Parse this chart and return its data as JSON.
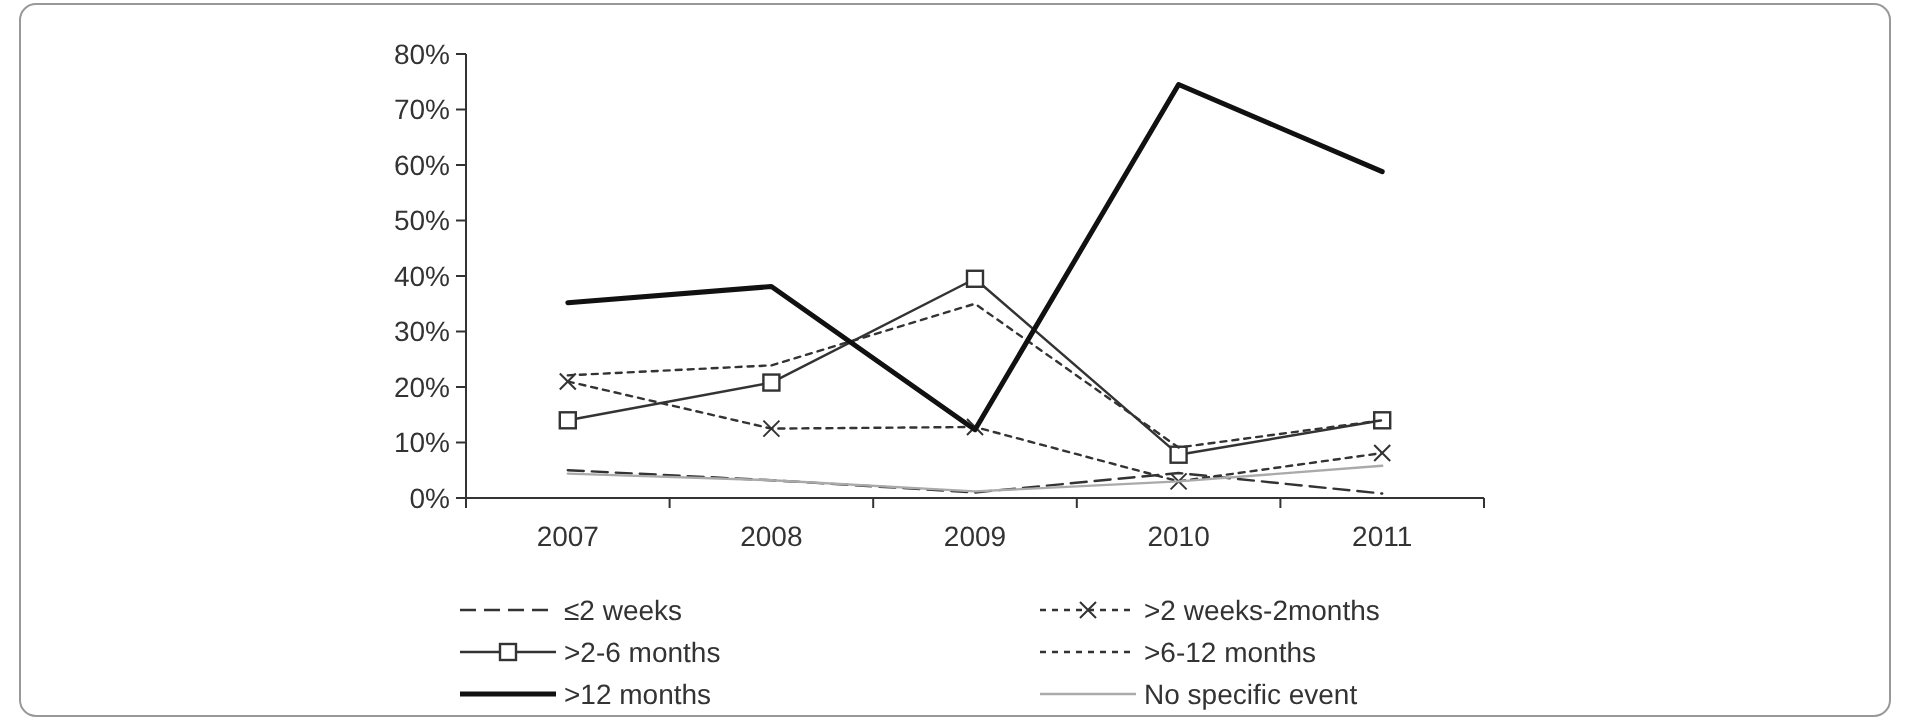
{
  "chart_data": {
    "type": "line",
    "categories": [
      "2007",
      "2008",
      "2009",
      "2010",
      "2011"
    ],
    "ylim": [
      0,
      80
    ],
    "yticks": [
      {
        "value": 0,
        "label": "0%"
      },
      {
        "value": 10,
        "label": "10%"
      },
      {
        "value": 20,
        "label": "20%"
      },
      {
        "value": 30,
        "label": "30%"
      },
      {
        "value": 40,
        "label": "40%"
      },
      {
        "value": 50,
        "label": "50%"
      },
      {
        "value": 60,
        "label": "60%"
      },
      {
        "value": 70,
        "label": "70%"
      },
      {
        "value": 80,
        "label": "80%"
      }
    ],
    "grid": false,
    "legend": "bottom",
    "series": [
      {
        "name": "≤2 weeks",
        "color": "#333333",
        "line_style": "dashed",
        "marker": "none",
        "values": [
          5,
          3.2,
          1,
          4.5,
          0.8
        ]
      },
      {
        "name": ">2 weeks-2months",
        "color": "#333333",
        "line_style": "dotted",
        "marker": "cross",
        "values": [
          21,
          12.5,
          12.8,
          3,
          8.1
        ]
      },
      {
        "name": ">2-6 months",
        "color": "#333333",
        "line_style": "solid",
        "marker": "square",
        "values": [
          14,
          20.8,
          39.5,
          7.8,
          14
        ]
      },
      {
        "name": ">6-12 months",
        "color": "#333333",
        "line_style": "dotted",
        "marker": "none",
        "values": [
          22.1,
          23.9,
          35,
          9.1,
          14
        ]
      },
      {
        "name": ">12 months",
        "color": "#111111",
        "line_style": "solid",
        "marker": "none",
        "values": [
          35.2,
          38.1,
          12.3,
          74.5,
          58.8
        ]
      },
      {
        "name": "No specific event",
        "color": "#aaaaaa",
        "line_style": "solid",
        "marker": "none",
        "values": [
          4.4,
          3.2,
          1.2,
          3,
          5.8
        ]
      }
    ]
  }
}
